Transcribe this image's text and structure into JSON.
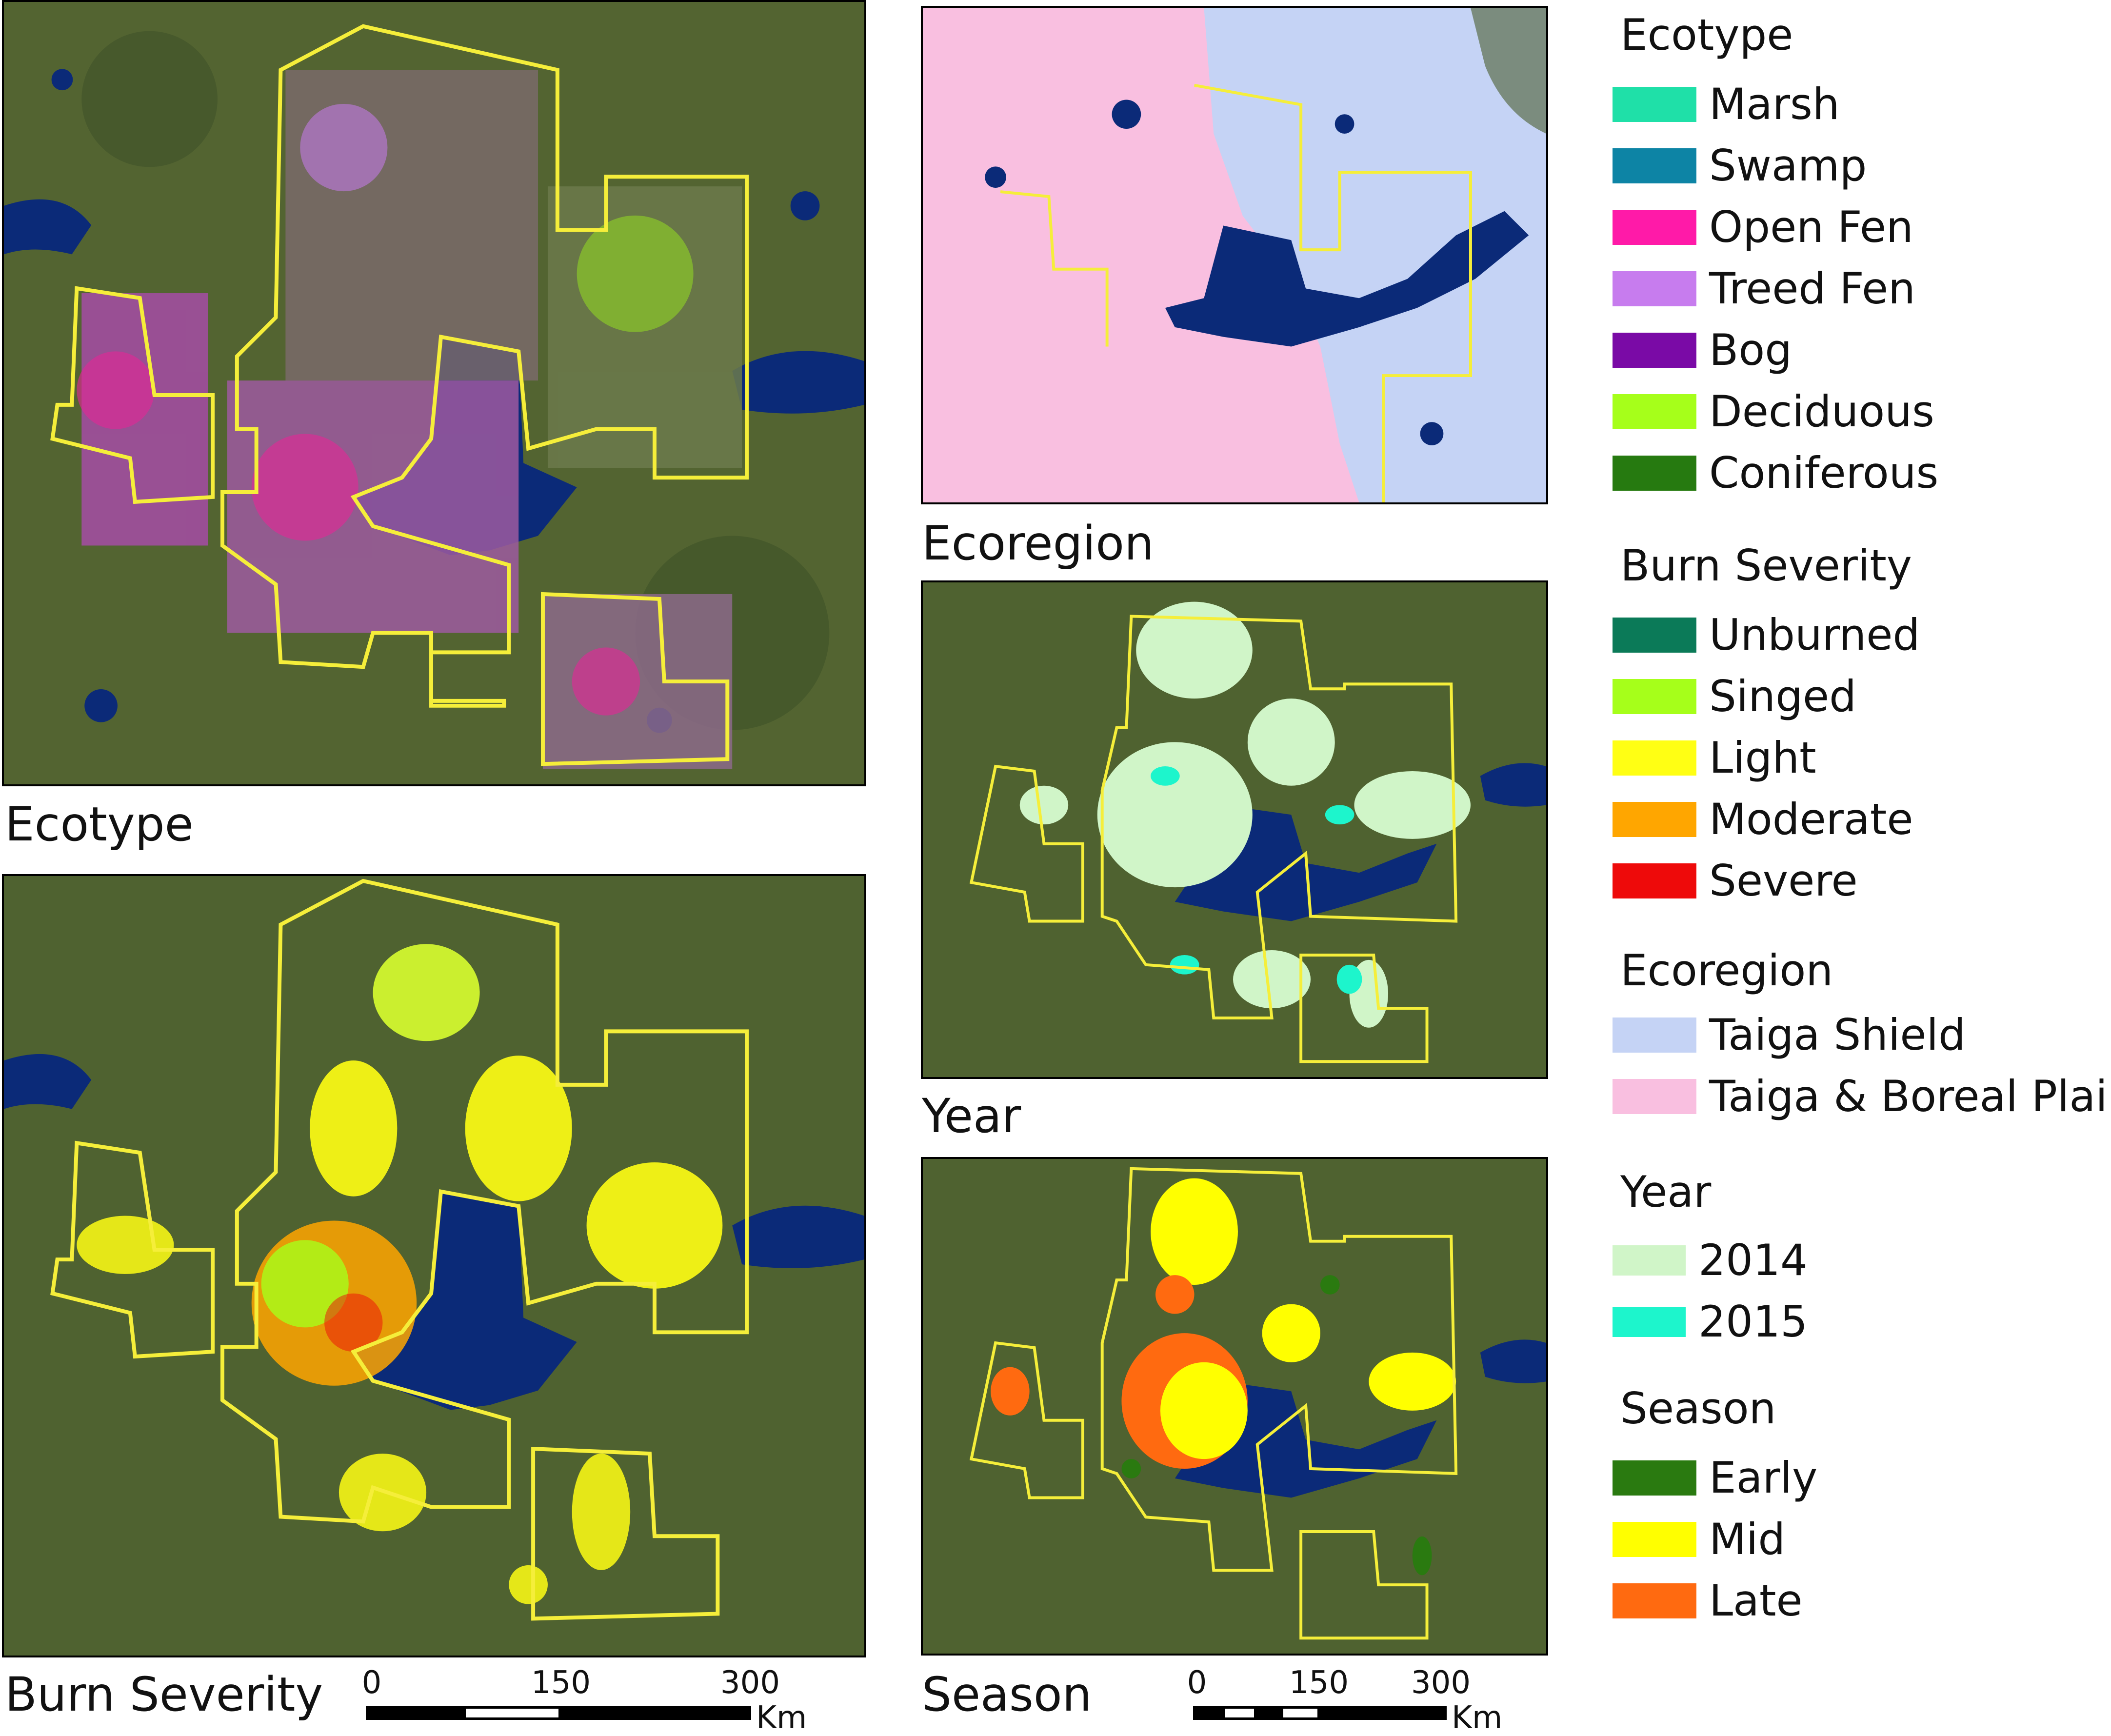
{
  "panels": {
    "ecotype": {
      "label": "Ecotype"
    },
    "ecoregion": {
      "label": "Ecoregion"
    },
    "burn_severity": {
      "label": "Burn Severity"
    },
    "year": {
      "label": "Year"
    },
    "season": {
      "label": "Season"
    }
  },
  "legend": {
    "ecotype": {
      "heading": "Ecotype",
      "items": [
        {
          "label": "Marsh",
          "color": "#1fe0a8"
        },
        {
          "label": "Swamp",
          "color": "#0d84a5"
        },
        {
          "label": "Open Fen",
          "color": "#ff1aa8"
        },
        {
          "label": "Treed Fen",
          "color": "#c77cee"
        },
        {
          "label": "Bog",
          "color": "#7a0aa6"
        },
        {
          "label": "Deciduous",
          "color": "#a6ff1a"
        },
        {
          "label": "Coniferous",
          "color": "#267a10"
        }
      ]
    },
    "burn_severity": {
      "heading": "Burn Severity",
      "items": [
        {
          "label": "Unburned",
          "color": "#0b7a58"
        },
        {
          "label": "Singed",
          "color": "#a6ff1a"
        },
        {
          "label": "Light",
          "color": "#ffff14"
        },
        {
          "label": "Moderate",
          "color": "#ffa600"
        },
        {
          "label": "Severe",
          "color": "#ee0a0a"
        }
      ]
    },
    "ecoregion": {
      "heading": "Ecoregion",
      "items": [
        {
          "label": "Taiga Shield",
          "color": "#c5d3f5"
        },
        {
          "label": "Taiga & Boreal Plain",
          "color": "#f9bfe0"
        }
      ]
    },
    "year": {
      "heading": "Year",
      "items": [
        {
          "label": "2014",
          "color": "#d0f5c8"
        },
        {
          "label": "2015",
          "color": "#1df5cc"
        }
      ]
    },
    "season": {
      "heading": "Season",
      "items": [
        {
          "label": "Early",
          "color": "#2a7a10"
        },
        {
          "label": "Mid",
          "color": "#ffff00"
        },
        {
          "label": "Late",
          "color": "#ff6a10"
        }
      ]
    }
  },
  "scalebars": {
    "left": {
      "ticks": [
        "0",
        "150",
        "300"
      ],
      "unit": "Km"
    },
    "right": {
      "ticks": [
        "0",
        "150",
        "300"
      ],
      "unit": "Km"
    }
  },
  "colors": {
    "land": "#4a5d2e",
    "water": "#0b2a78",
    "boundary": "#f5ee3a"
  }
}
